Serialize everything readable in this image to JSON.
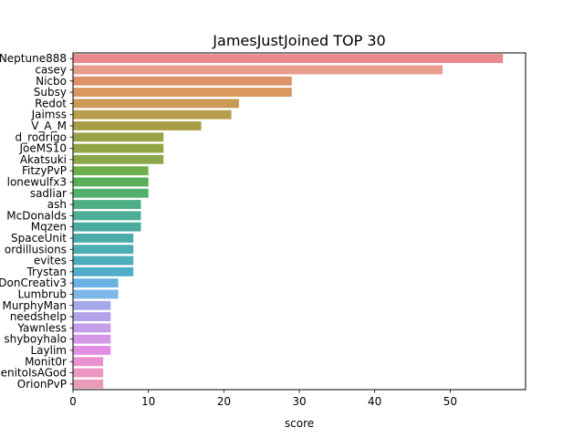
{
  "chart_data": {
    "type": "bar",
    "orientation": "horizontal",
    "title": "JamesJustJoined TOP 30",
    "xlabel": "score",
    "ylabel": "",
    "xlim": [
      0,
      60
    ],
    "xticks": [
      0,
      10,
      20,
      30,
      40,
      50
    ],
    "grid": false,
    "categories": [
      "Neptune888",
      "casey",
      "Nicbo",
      "Subsy",
      "Redot",
      "Jaimss",
      "V_A_M",
      "d_rodrigo",
      "JoeMS10",
      "Akatsuki",
      "FitzyPvP",
      "lonewulfx3",
      "sadliar",
      "ash",
      "McDonalds",
      "Mqzen",
      "SpaceUnit",
      "ordillusions",
      "evites",
      "Trystan",
      "DonCreativ3",
      "Lumbrub",
      "MurphyMan",
      "needshelp",
      "Yawnless",
      "shyboyhalo",
      "Laylim",
      "Monit0r",
      "BenitoIsAGod",
      "OrionPvP"
    ],
    "values": [
      57,
      49,
      29,
      29,
      22,
      21,
      17,
      12,
      12,
      12,
      10,
      10,
      10,
      9,
      9,
      9,
      8,
      8,
      8,
      8,
      6,
      6,
      5,
      5,
      5,
      5,
      5,
      4,
      4,
      4
    ],
    "colors": [
      "#e8898b",
      "#e99b8e",
      "#dd9369",
      "#d9965f",
      "#c99a54",
      "#b89d4c",
      "#a89f45",
      "#9aa344",
      "#93a646",
      "#8aa84a",
      "#6eb04d",
      "#5aae5a",
      "#52b06e",
      "#4cae85",
      "#4bae93",
      "#4aac9e",
      "#4aaba8",
      "#4bacb2",
      "#4caebc",
      "#50acc8",
      "#68b3e3",
      "#7bb6e6",
      "#a6a8ea",
      "#b3a3ea",
      "#c39ee9",
      "#d599e8",
      "#e28fe1",
      "#e893cf",
      "#ea97c1",
      "#ea9ab4"
    ]
  }
}
